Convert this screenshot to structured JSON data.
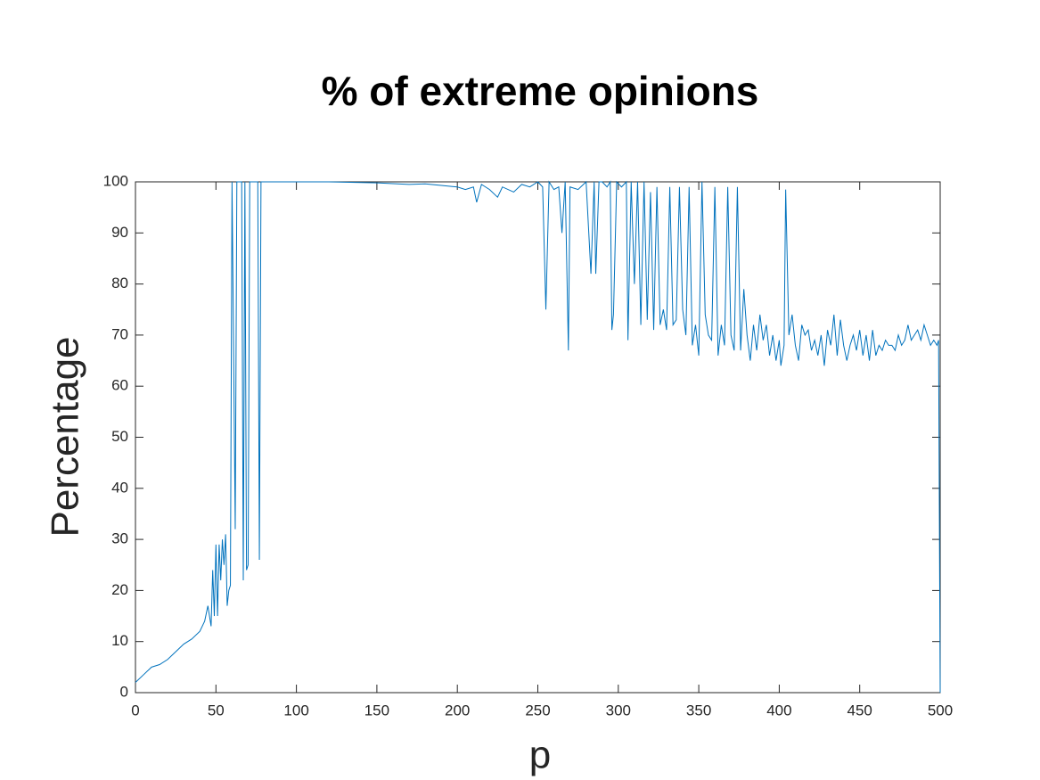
{
  "chart_data": {
    "type": "line",
    "title": "% of extreme opinions",
    "x_label": "p",
    "y_label": "Percentage",
    "x": [
      0,
      5,
      10,
      15,
      20,
      25,
      30,
      35,
      40,
      43,
      45,
      47,
      48,
      49,
      50,
      51,
      52,
      53,
      54,
      55,
      56,
      57,
      58,
      59,
      60,
      62,
      63,
      64,
      66,
      67,
      68,
      69,
      70,
      71,
      72,
      73,
      75,
      76,
      77,
      78,
      80,
      100,
      120,
      150,
      170,
      180,
      190,
      200,
      205,
      210,
      212,
      215,
      220,
      225,
      228,
      235,
      240,
      245,
      250,
      253,
      255,
      257,
      260,
      263,
      265,
      267,
      269,
      270,
      275,
      280,
      283,
      285,
      286,
      288,
      290,
      293,
      295,
      296,
      297,
      299,
      302,
      305,
      306,
      308,
      310,
      312,
      314,
      316,
      318,
      320,
      322,
      324,
      326,
      328,
      330,
      332,
      334,
      336,
      338,
      340,
      342,
      344,
      346,
      348,
      350,
      352,
      354,
      356,
      358,
      360,
      362,
      364,
      366,
      368,
      370,
      372,
      374,
      376,
      378,
      380,
      382,
      384,
      386,
      388,
      390,
      392,
      394,
      396,
      398,
      400,
      401,
      403,
      404,
      406,
      408,
      410,
      412,
      414,
      416,
      418,
      420,
      422,
      424,
      426,
      428,
      430,
      432,
      434,
      436,
      438,
      440,
      442,
      444,
      446,
      448,
      450,
      452,
      454,
      456,
      458,
      460,
      462,
      464,
      466,
      468,
      470,
      472,
      474,
      476,
      478,
      480,
      482,
      484,
      486,
      488,
      490,
      492,
      494,
      496,
      498,
      499,
      500
    ],
    "series": [
      {
        "name": "Percentage",
        "color": "#0072bd",
        "values": [
          2,
          3.5,
          5,
          5.5,
          6.5,
          8,
          9.5,
          10.5,
          12,
          14,
          17,
          13,
          24,
          15,
          29,
          15,
          29,
          22,
          30,
          25,
          31,
          17,
          20,
          21,
          100,
          32,
          100,
          100,
          100,
          22,
          100,
          24,
          25,
          100,
          100,
          100,
          100,
          100,
          26,
          100,
          100,
          100,
          100,
          99.8,
          99.5,
          99.6,
          99.3,
          99,
          98.5,
          99,
          96,
          99.5,
          98.5,
          97,
          99,
          98,
          99.5,
          99,
          100,
          99,
          75,
          100,
          98.5,
          99,
          90,
          100,
          67,
          99,
          98.5,
          100,
          82,
          100,
          82,
          100,
          100,
          99,
          100,
          71,
          74,
          100,
          99,
          100,
          69,
          100,
          80,
          100,
          72,
          100,
          73,
          98,
          71,
          99,
          72,
          75,
          71,
          99,
          72,
          73,
          99,
          75,
          70,
          99,
          68,
          72,
          66,
          100,
          74,
          70,
          69,
          99,
          66,
          72,
          68,
          99,
          70,
          67,
          99,
          67,
          79,
          70,
          65,
          72,
          67,
          74,
          69,
          72,
          66,
          70,
          65,
          69,
          64,
          68,
          98.5,
          70,
          74,
          68,
          65,
          72,
          70,
          71,
          67,
          69,
          66,
          70,
          64,
          71,
          68,
          74,
          66,
          73,
          68,
          65,
          68,
          70,
          67,
          71,
          66,
          70,
          65,
          71,
          66,
          68,
          67,
          69,
          68,
          68,
          67,
          70,
          68,
          69,
          72,
          69,
          70,
          71,
          69,
          72,
          70,
          68,
          69,
          68,
          69,
          0
        ]
      }
    ],
    "xlim": [
      0,
      500
    ],
    "ylim": [
      0,
      100
    ],
    "xticks": [
      0,
      50,
      100,
      150,
      200,
      250,
      300,
      350,
      400,
      450,
      500
    ],
    "yticks": [
      0,
      10,
      20,
      30,
      40,
      50,
      60,
      70,
      80,
      90,
      100
    ]
  }
}
